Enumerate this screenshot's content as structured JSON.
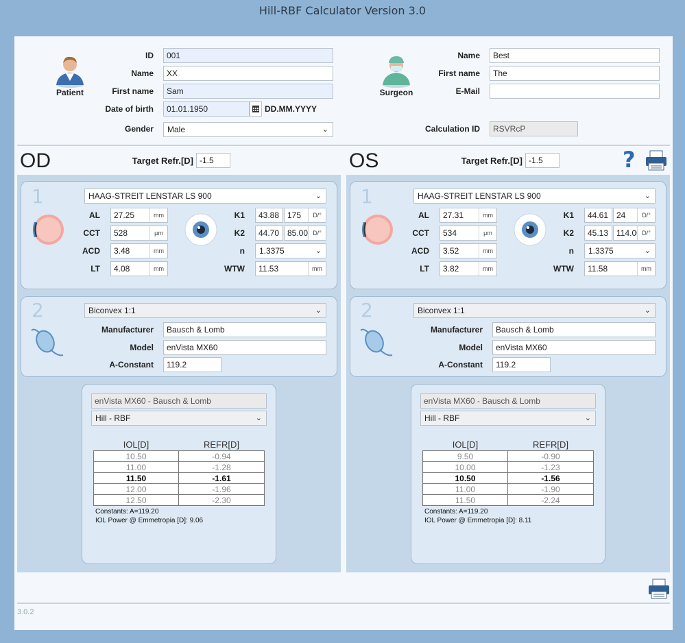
{
  "app": {
    "title": "Hill-RBF Calculator Version 3.0",
    "version": "3.0.2"
  },
  "patient": {
    "caption": "Patient",
    "id_label": "ID",
    "id": "001",
    "name_label": "Name",
    "name": "XX",
    "first_name_label": "First name",
    "first_name": "Sam",
    "dob_label": "Date of birth",
    "dob": "01.01.1950",
    "dob_format": "DD.MM.YYYY",
    "gender_label": "Gender",
    "gender": "Male"
  },
  "surgeon": {
    "caption": "Surgeon",
    "name_label": "Name",
    "name": "Best",
    "first_name_label": "First name",
    "first_name": "The",
    "email_label": "E-Mail",
    "email": "",
    "calc_id_label": "Calculation ID",
    "calc_id": "RSVRcP"
  },
  "help_icon": "?",
  "labels": {
    "target": "Target Refr.[D]",
    "al": "AL",
    "cct": "CCT",
    "acd": "ACD",
    "lt": "LT",
    "k1": "K1",
    "k2": "K2",
    "n": "n",
    "wtw": "WTW",
    "manufacturer": "Manufacturer",
    "model": "Model",
    "aconst": "A-Constant",
    "iol_col": "IOL[D]",
    "refr_col": "REFR[D]",
    "mm": "mm",
    "um": "μm",
    "d": "D/°",
    "section1": "1",
    "section2": "2"
  },
  "od": {
    "eye": "OD",
    "target": "-1.5",
    "biometer": "HAAG-STREIT LENSTAR LS 900",
    "al": "27.25",
    "cct": "528",
    "acd": "3.48",
    "lt": "4.08",
    "k1": "43.88",
    "k1_axis": "175",
    "k2": "44.70",
    "k2_axis": "85.00",
    "n": "1.3375",
    "wtw": "11.53",
    "lens_type": "Biconvex 1:1",
    "manufacturer": "Bausch & Lomb",
    "model": "enVista MX60",
    "aconst": "119.2",
    "result_lens": "enVista MX60 - Bausch & Lomb",
    "formula": "Hill - RBF",
    "rows": [
      {
        "iol": "10.50",
        "refr": "-0.94"
      },
      {
        "iol": "11.00",
        "refr": "-1.28"
      },
      {
        "iol": "11.50",
        "refr": "-1.61"
      },
      {
        "iol": "12.00",
        "refr": "-1.96"
      },
      {
        "iol": "12.50",
        "refr": "-2.30"
      }
    ],
    "constants": "Constants: A=119.20",
    "emmetropia": "IOL Power @ Emmetropia [D]: 9.06"
  },
  "os": {
    "eye": "OS",
    "target": "-1.5",
    "biometer": "HAAG-STREIT LENSTAR LS 900",
    "al": "27.31",
    "cct": "534",
    "acd": "3.52",
    "lt": "3.82",
    "k1": "44.61",
    "k1_axis": "24",
    "k2": "45.13",
    "k2_axis": "114.00",
    "n": "1.3375",
    "wtw": "11.58",
    "lens_type": "Biconvex 1:1",
    "manufacturer": "Bausch & Lomb",
    "model": "enVista MX60",
    "aconst": "119.2",
    "result_lens": "enVista MX60 - Bausch & Lomb",
    "formula": "Hill - RBF",
    "rows": [
      {
        "iol": "9.50",
        "refr": "-0.90"
      },
      {
        "iol": "10.00",
        "refr": "-1.23"
      },
      {
        "iol": "10.50",
        "refr": "-1.56"
      },
      {
        "iol": "11.00",
        "refr": "-1.90"
      },
      {
        "iol": "11.50",
        "refr": "-2.24"
      }
    ],
    "constants": "Constants: A=119.20",
    "emmetropia": "IOL Power @ Emmetropia [D]: 8.11"
  }
}
